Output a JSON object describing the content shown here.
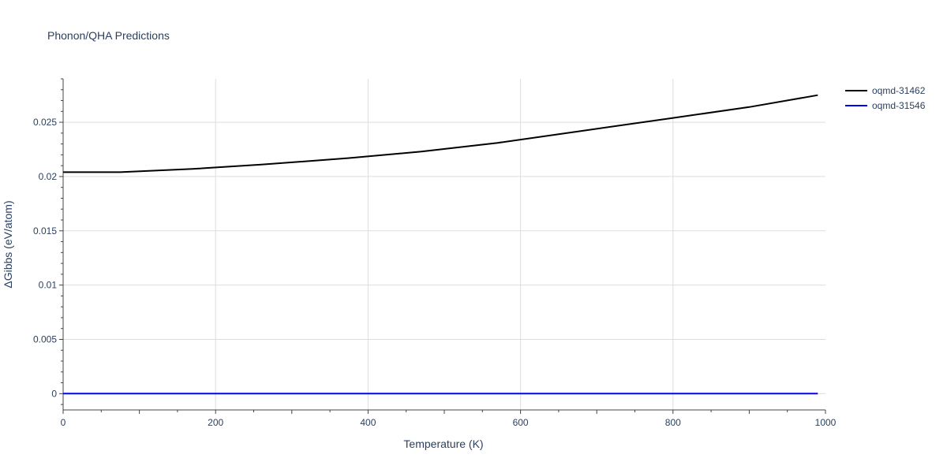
{
  "chart_data": {
    "type": "line",
    "title": "Phonon/QHA Predictions",
    "xlabel": "Temperature (K)",
    "ylabel": "ΔGibbs (eV/atom)",
    "xlim": [
      0,
      1000
    ],
    "ylim": [
      -0.0015,
      0.029
    ],
    "x_ticks": [
      0,
      200,
      400,
      600,
      800,
      1000
    ],
    "x_tick_labels": [
      "0",
      "200",
      "400",
      "600",
      "800",
      "1000"
    ],
    "y_ticks": [
      0,
      0.005,
      0.01,
      0.015,
      0.02,
      0.025
    ],
    "y_tick_labels": [
      "0",
      "0.005",
      "0.01",
      "0.015",
      "0.02",
      "0.025"
    ],
    "grid": true,
    "legend_position": "top-right",
    "series": [
      {
        "name": "oqmd-31462",
        "color": "#000000",
        "x": [
          0,
          75,
          170,
          260,
          375,
          470,
          570,
          690,
          800,
          900,
          990
        ],
        "y": [
          0.0204,
          0.0204,
          0.0207,
          0.0211,
          0.0217,
          0.0223,
          0.0231,
          0.0243,
          0.0254,
          0.0264,
          0.0275
        ]
      },
      {
        "name": "oqmd-31546",
        "color": "#0000ff",
        "x": [
          0,
          990
        ],
        "y": [
          0,
          0
        ]
      }
    ]
  }
}
